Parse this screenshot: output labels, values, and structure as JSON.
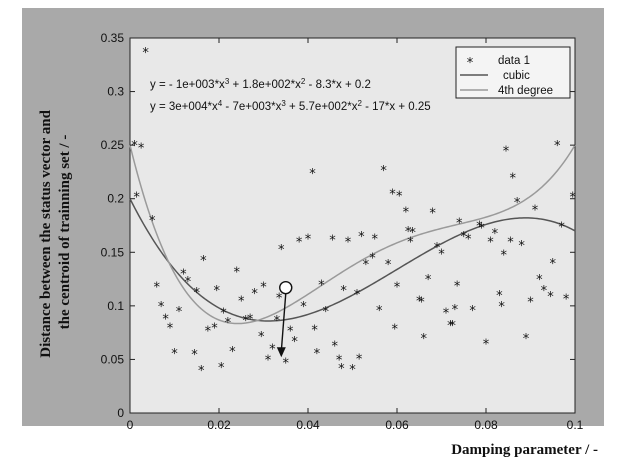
{
  "chart_data": {
    "type": "scatter",
    "xlabel": "Damping parameter / -",
    "ylabel": "Distance between the status vector and the centroid of trainning set / -",
    "xlim": [
      0,
      0.1
    ],
    "ylim": [
      0,
      0.35
    ],
    "xticks": [
      "0",
      "0.02",
      "0.04",
      "0.06",
      "0.08",
      "0.1"
    ],
    "yticks": [
      "0",
      "0.05",
      "0.1",
      "0.15",
      "0.2",
      "0.25",
      "0.3",
      "0.35"
    ],
    "grid": false,
    "legend_position": "top-right",
    "annotations": [
      {
        "type": "equation",
        "series": "cubic",
        "parts": [
          "y = - 1e+003*x",
          "3",
          " + 1.8e+002*x",
          "2",
          " - 8.3*x + 0.2"
        ]
      },
      {
        "type": "equation",
        "series": "4th degree",
        "parts": [
          "y = 3e+004*x",
          "4",
          " - 7e+003*x",
          "3",
          " + 5.7e+002*x",
          "2",
          " - 17*x + 0.25"
        ]
      },
      {
        "type": "arrow",
        "from": [
          0.035,
          0.117
        ],
        "to": [
          0.034,
          0.052
        ]
      }
    ],
    "series": [
      {
        "name": "data 1",
        "kind": "scatter",
        "marker": "*",
        "points": [
          [
            0.001,
            0.25
          ],
          [
            0.0015,
            0.202
          ],
          [
            0.0025,
            0.248
          ],
          [
            0.0035,
            0.337
          ],
          [
            0.005,
            0.18
          ],
          [
            0.006,
            0.118
          ],
          [
            0.007,
            0.1
          ],
          [
            0.008,
            0.088
          ],
          [
            0.009,
            0.08
          ],
          [
            0.01,
            0.056
          ],
          [
            0.011,
            0.095
          ],
          [
            0.012,
            0.13
          ],
          [
            0.013,
            0.123
          ],
          [
            0.0145,
            0.055
          ],
          [
            0.015,
            0.113
          ],
          [
            0.016,
            0.04
          ],
          [
            0.0165,
            0.143
          ],
          [
            0.0175,
            0.077
          ],
          [
            0.019,
            0.08
          ],
          [
            0.0195,
            0.115
          ],
          [
            0.0205,
            0.043
          ],
          [
            0.021,
            0.094
          ],
          [
            0.022,
            0.085
          ],
          [
            0.023,
            0.058
          ],
          [
            0.024,
            0.132
          ],
          [
            0.025,
            0.105
          ],
          [
            0.026,
            0.087
          ],
          [
            0.027,
            0.088
          ],
          [
            0.028,
            0.112
          ],
          [
            0.0295,
            0.072
          ],
          [
            0.03,
            0.118
          ],
          [
            0.031,
            0.05
          ],
          [
            0.032,
            0.06
          ],
          [
            0.033,
            0.087
          ],
          [
            0.034,
            0.153
          ],
          [
            0.0335,
            0.108
          ],
          [
            0.035,
            0.047
          ],
          [
            0.036,
            0.077
          ],
          [
            0.037,
            0.067
          ],
          [
            0.038,
            0.16
          ],
          [
            0.039,
            0.1
          ],
          [
            0.04,
            0.163
          ],
          [
            0.041,
            0.224
          ],
          [
            0.0415,
            0.078
          ],
          [
            0.042,
            0.056
          ],
          [
            0.043,
            0.12
          ],
          [
            0.044,
            0.095
          ],
          [
            0.0455,
            0.162
          ],
          [
            0.046,
            0.063
          ],
          [
            0.047,
            0.05
          ],
          [
            0.0475,
            0.042
          ],
          [
            0.048,
            0.115
          ],
          [
            0.049,
            0.16
          ],
          [
            0.05,
            0.041
          ],
          [
            0.051,
            0.111
          ],
          [
            0.0515,
            0.051
          ],
          [
            0.052,
            0.165
          ],
          [
            0.053,
            0.139
          ],
          [
            0.0545,
            0.145
          ],
          [
            0.055,
            0.163
          ],
          [
            0.056,
            0.096
          ],
          [
            0.057,
            0.227
          ],
          [
            0.058,
            0.139
          ],
          [
            0.059,
            0.205
          ],
          [
            0.0595,
            0.079
          ],
          [
            0.06,
            0.118
          ],
          [
            0.0605,
            0.203
          ],
          [
            0.062,
            0.188
          ],
          [
            0.0625,
            0.17
          ],
          [
            0.063,
            0.16
          ],
          [
            0.0635,
            0.169
          ],
          [
            0.065,
            0.105
          ],
          [
            0.0655,
            0.104
          ],
          [
            0.066,
            0.07
          ],
          [
            0.067,
            0.125
          ],
          [
            0.068,
            0.187
          ],
          [
            0.069,
            0.155
          ],
          [
            0.07,
            0.149
          ],
          [
            0.071,
            0.094
          ],
          [
            0.072,
            0.082
          ],
          [
            0.0725,
            0.082
          ],
          [
            0.073,
            0.097
          ],
          [
            0.0735,
            0.119
          ],
          [
            0.074,
            0.178
          ],
          [
            0.075,
            0.165
          ],
          [
            0.076,
            0.163
          ],
          [
            0.077,
            0.096
          ],
          [
            0.0785,
            0.175
          ],
          [
            0.079,
            0.173
          ],
          [
            0.08,
            0.065
          ],
          [
            0.081,
            0.16
          ],
          [
            0.082,
            0.168
          ],
          [
            0.083,
            0.11
          ],
          [
            0.0835,
            0.1
          ],
          [
            0.084,
            0.148
          ],
          [
            0.0845,
            0.245
          ],
          [
            0.0855,
            0.16
          ],
          [
            0.086,
            0.22
          ],
          [
            0.087,
            0.197
          ],
          [
            0.088,
            0.157
          ],
          [
            0.089,
            0.07
          ],
          [
            0.09,
            0.104
          ],
          [
            0.091,
            0.19
          ],
          [
            0.092,
            0.125
          ],
          [
            0.093,
            0.115
          ],
          [
            0.0945,
            0.109
          ],
          [
            0.095,
            0.14
          ],
          [
            0.096,
            0.25
          ],
          [
            0.097,
            0.174
          ],
          [
            0.098,
            0.107
          ],
          [
            0.0995,
            0.202
          ]
        ]
      },
      {
        "name": "cubic",
        "kind": "line",
        "color": "#555555",
        "coefficients": [
          -1000,
          180,
          -8.3,
          0.2
        ]
      },
      {
        "name": "4th degree",
        "kind": "line",
        "color": "#9a9a9a",
        "coefficients": [
          30000,
          -7000,
          570,
          -17,
          0.25
        ]
      }
    ]
  },
  "colors": {
    "frame_background": "#a9a9a9",
    "plot_background": "#e8e8e8"
  }
}
